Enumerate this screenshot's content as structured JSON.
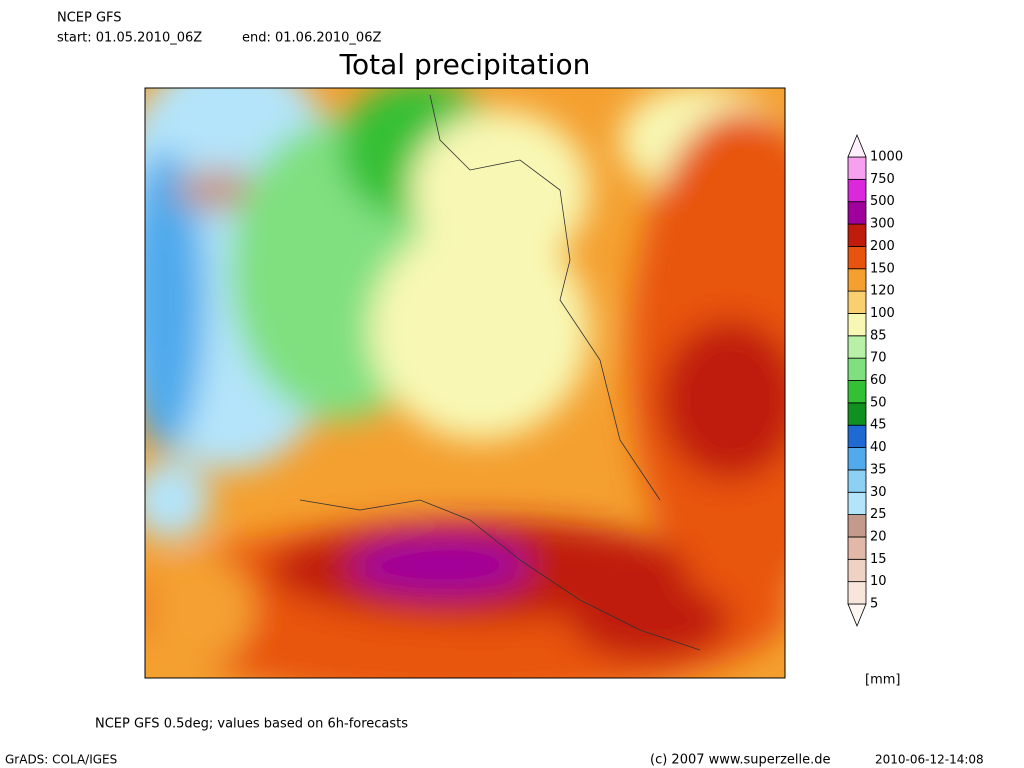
{
  "header": {
    "model": "NCEP GFS",
    "start": "start: 01.05.2010_06Z",
    "end": "end: 01.06.2010_06Z"
  },
  "title": "Total precipitation",
  "colorbar": {
    "levels": [
      5,
      10,
      15,
      20,
      25,
      30,
      35,
      40,
      45,
      50,
      60,
      70,
      85,
      100,
      120,
      150,
      200,
      300,
      500,
      750,
      1000
    ],
    "colors": [
      "#fdf6f2",
      "#f8e6dc",
      "#f0d2c4",
      "#e2b8a8",
      "#c49a8c",
      "#b4e4fa",
      "#8cd0f4",
      "#50aaec",
      "#1e6ad2",
      "#10901e",
      "#34c034",
      "#80e080",
      "#b8f0a8",
      "#f8f8b4",
      "#f8d070",
      "#f4a030",
      "#e85410",
      "#c01c0c",
      "#a0009c",
      "#dc28dc",
      "#f8a0f0",
      "#fff0fc"
    ],
    "unit": "[mm]"
  },
  "footer": {
    "note": "NCEP GFS 0.5deg; values based on 6h-forecasts",
    "software": "GrADS: COLA/IGES",
    "copyright": "(c) 2007 www.superzelle.de",
    "timestamp": "2010-06-12-14:08"
  }
}
